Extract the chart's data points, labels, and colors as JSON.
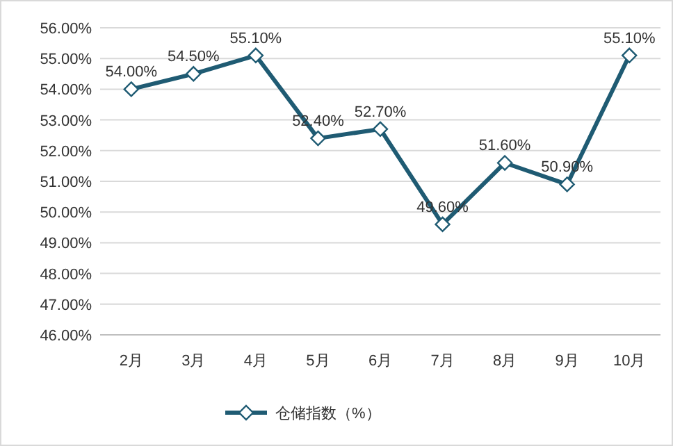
{
  "chart_data": {
    "type": "line",
    "categories": [
      "2月",
      "3月",
      "4月",
      "5月",
      "6月",
      "7月",
      "8月",
      "9月",
      "10月"
    ],
    "series": [
      {
        "name": "仓储指数（%）",
        "color": "#1f5b73",
        "values": [
          54.0,
          54.5,
          55.1,
          52.4,
          52.7,
          49.6,
          51.6,
          50.9,
          55.1
        ],
        "value_labels": [
          "54.00%",
          "54.50%",
          "55.10%",
          "52.40%",
          "52.70%",
          "49.60%",
          "51.60%",
          "50.90%",
          "55.10%"
        ]
      }
    ],
    "ylim": [
      46,
      56
    ],
    "yticks": [
      {
        "value": 46,
        "label": "46.00%"
      },
      {
        "value": 47,
        "label": "47.00%"
      },
      {
        "value": 48,
        "label": "48.00%"
      },
      {
        "value": 49,
        "label": "49.00%"
      },
      {
        "value": 50,
        "label": "50.00%"
      },
      {
        "value": 51,
        "label": "51.00%"
      },
      {
        "value": 52,
        "label": "52.00%"
      },
      {
        "value": 53,
        "label": "53.00%"
      },
      {
        "value": 54,
        "label": "54.00%"
      },
      {
        "value": 55,
        "label": "55.00%"
      },
      {
        "value": 56,
        "label": "56.00%"
      }
    ],
    "grid": "y",
    "legend": "bottom",
    "marker": "diamond",
    "line_style": "solid"
  }
}
